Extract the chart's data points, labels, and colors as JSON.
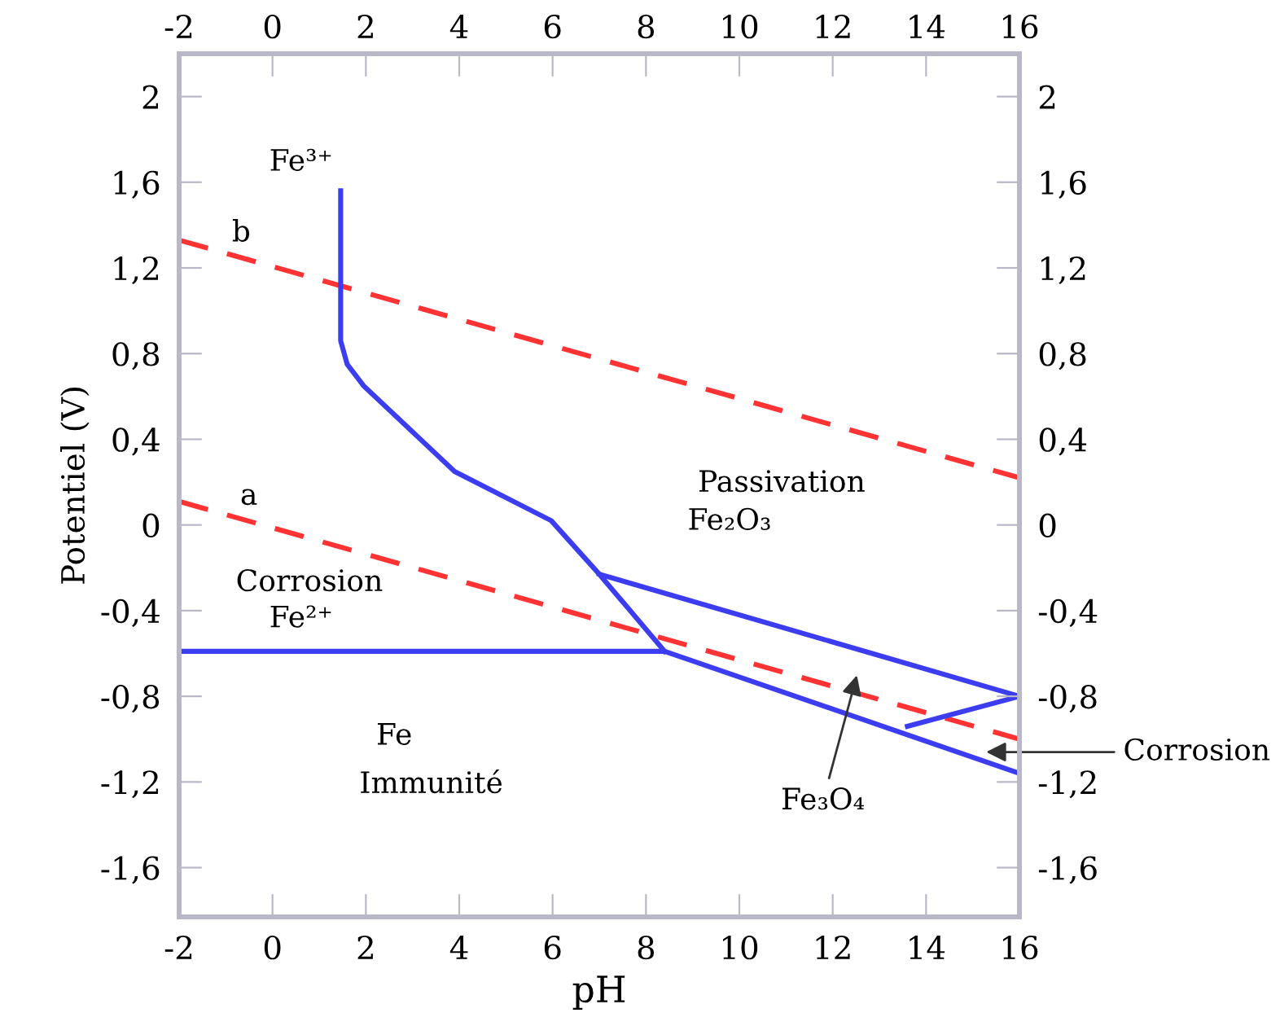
{
  "chart_data": {
    "type": "line",
    "xlabel": "pH",
    "ylabel": "Potentiel (V)",
    "xlim": [
      -2,
      16
    ],
    "xticks": [
      -2,
      0,
      2,
      4,
      6,
      8,
      10,
      12,
      14,
      16
    ],
    "x2lim": [
      -2,
      16
    ],
    "x2ticks": [
      -2,
      0,
      2,
      4,
      6,
      8,
      10,
      12,
      14,
      16
    ],
    "ylim": [
      -1.83,
      2.2
    ],
    "yticks": [
      {
        "value": -1.6,
        "label": "-1,6"
      },
      {
        "value": -1.2,
        "label": "-1,2"
      },
      {
        "value": -0.8,
        "label": "-0,8"
      },
      {
        "value": -0.4,
        "label": "-0,4"
      },
      0,
      {
        "value": 0.4,
        "label": "0,4"
      },
      {
        "value": 0.8,
        "label": "0,8"
      },
      {
        "value": 1.2,
        "label": "1,2"
      },
      {
        "value": 1.6,
        "label": "1,6"
      },
      2
    ],
    "y2lim": [
      -1.83,
      2.2
    ],
    "y2ticks": [
      {
        "value": -1.6,
        "label": "-1,6"
      },
      {
        "value": -1.2,
        "label": "-1,2"
      },
      {
        "value": -0.8,
        "label": "-0,8"
      },
      {
        "value": -0.4,
        "label": "-0,4"
      },
      0,
      {
        "value": 0.4,
        "label": "0,4"
      },
      {
        "value": 0.8,
        "label": "0,8"
      },
      {
        "value": 1.2,
        "label": "1,2"
      },
      {
        "value": 1.6,
        "label": "1,6"
      },
      2
    ],
    "grid": false,
    "legend": false,
    "marker": "none",
    "series": [
      {
        "color": "#ff3333",
        "line_style": "dashed",
        "x": [
          -2,
          16
        ],
        "values": [
          1.33,
          0.22
        ]
      },
      {
        "color": "#ff3333",
        "line_style": "dashed",
        "x": [
          -2,
          16
        ],
        "values": [
          0.11,
          -1.0
        ]
      },
      {
        "color": "#3c3cf0",
        "line_style": "solid",
        "x": [
          1.46,
          1.46,
          1.6,
          1.95,
          3.9,
          5.97,
          7.0,
          8.4
        ],
        "values": [
          1.56,
          0.86,
          0.75,
          0.65,
          0.25,
          0.02,
          -0.23,
          -0.59
        ]
      },
      {
        "color": "#3c3cf0",
        "line_style": "solid",
        "x": [
          -2,
          8.4,
          16
        ],
        "values": [
          -0.59,
          -0.59,
          -1.16
        ]
      },
      {
        "color": "#3c3cf0",
        "line_style": "solid",
        "x": [
          7.0,
          16,
          13.6
        ],
        "values": [
          -0.23,
          -0.8,
          -0.94
        ]
      }
    ],
    "annotations": [
      "Fe³⁺",
      "b",
      "a",
      "Corrosion",
      "Fe²⁺",
      "Passivation",
      "Fe₂O₃",
      "Fe",
      "Immunité",
      "Fe₃O₄",
      "Corrosion"
    ]
  }
}
